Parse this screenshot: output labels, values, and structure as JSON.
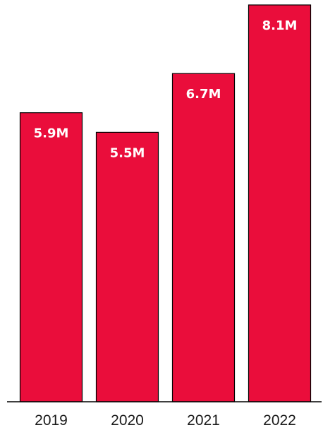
{
  "chart_data": {
    "type": "bar",
    "title": "",
    "xlabel": "",
    "ylabel": "",
    "categories": [
      "2019",
      "2020",
      "2021",
      "2022"
    ],
    "values": [
      5.9,
      5.5,
      6.7,
      8.1
    ],
    "data_labels": [
      "5.9M",
      "5.5M",
      "6.7M",
      "8.1M"
    ],
    "ylim": [
      0,
      8.1
    ],
    "grid": false,
    "colors": {
      "bar": "#ea0d3b",
      "bar_outline": "#000000",
      "label": "#ffffff",
      "axis_text": "#1a1a1a"
    }
  }
}
